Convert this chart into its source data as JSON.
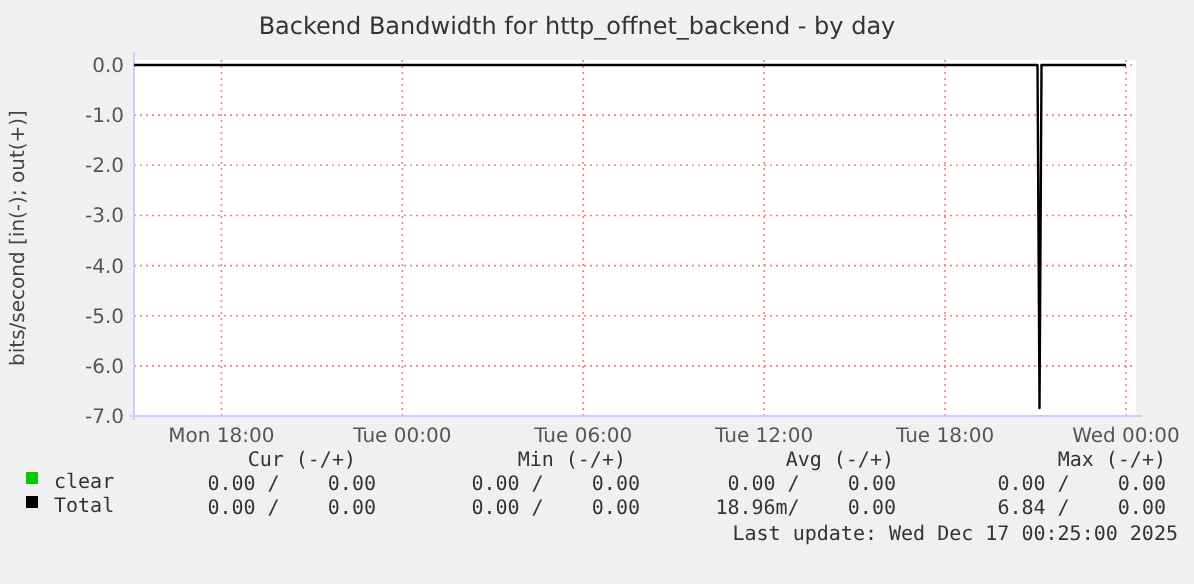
{
  "chart_data": {
    "type": "line",
    "title": "Backend Bandwidth for http_offnet_backend - by day",
    "ylabel": "bits/second [in(-); out(+)]",
    "xlim": [
      "2025-12-15T15:06",
      "2025-12-17T00:20"
    ],
    "xticks": [
      {
        "value": "2025-12-15T18:00",
        "label": "Mon 18:00"
      },
      {
        "value": "2025-12-16T00:00",
        "label": "Tue 00:00"
      },
      {
        "value": "2025-12-16T06:00",
        "label": "Tue 06:00"
      },
      {
        "value": "2025-12-16T12:00",
        "label": "Tue 12:00"
      },
      {
        "value": "2025-12-16T18:00",
        "label": "Tue 18:00"
      },
      {
        "value": "2025-12-17T00:00",
        "label": "Wed 00:00"
      }
    ],
    "ylim": [
      -7,
      0.1
    ],
    "yticks": [
      {
        "value": 0,
        "label": "0.0"
      },
      {
        "value": -1,
        "label": "-1.0"
      },
      {
        "value": -2,
        "label": "-2.0"
      },
      {
        "value": -3,
        "label": "-3.0"
      },
      {
        "value": -4,
        "label": "-4.0"
      },
      {
        "value": -5,
        "label": "-5.0"
      },
      {
        "value": -6,
        "label": "-6.0"
      },
      {
        "value": -7,
        "label": "-7.0"
      }
    ],
    "grid": true,
    "legend": "bottom",
    "series": [
      {
        "name": "clear",
        "color": "#00cc00"
      },
      {
        "name": "Total",
        "color": "#000000",
        "x": [
          "2025-12-15T15:06",
          "2025-12-16T21:04",
          "2025-12-16T21:08",
          "2025-12-16T21:12",
          "2025-12-17T00:00"
        ],
        "values": [
          0,
          0,
          -6.84,
          0,
          0
        ]
      }
    ],
    "annotations": [
      "Cur (-/+)",
      "Min (-/+)",
      "Avg (-/+)",
      "Max (-/+)",
      "0.00 /    0.00",
      "0.00 /    0.00",
      "0.00 /    0.00",
      "0.00 /    0.00",
      "0.00 /    0.00",
      "0.00 /    0.00",
      "18.96m/    0.00",
      "6.84 /    0.00",
      "Last update: Wed Dec 17 00:25:00 2025"
    ]
  }
}
